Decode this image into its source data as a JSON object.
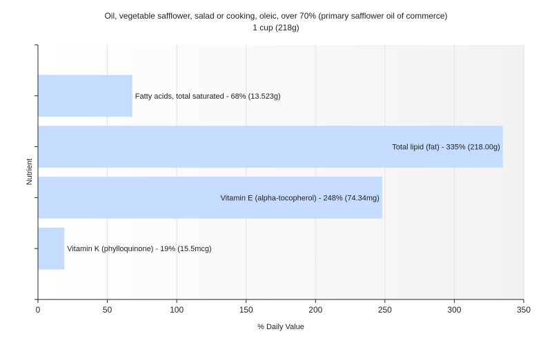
{
  "chart_data": {
    "type": "bar",
    "orientation": "horizontal",
    "title": "Oil, vegetable safflower, salad or cooking, oleic, over 70% (primary safflower oil of commerce)",
    "subtitle": "1 cup (218g)",
    "xlabel": "% Daily Value",
    "ylabel": "Nutrient",
    "xlim": [
      0,
      350
    ],
    "xticks": [
      0,
      50,
      100,
      150,
      200,
      250,
      300,
      350
    ],
    "grid": true,
    "bar_color": "#c5dcff",
    "categories": [
      "Fatty acids, total saturated",
      "Total lipid (fat)",
      "Vitamin E (alpha-tocopherol)",
      "Vitamin K (phylloquinone)"
    ],
    "values": [
      68,
      335,
      248,
      19
    ],
    "labels": [
      "Fatty acids, total saturated - 68% (13.523g)",
      "Total lipid (fat) - 335% (218.00g)",
      "Vitamin E (alpha-tocopherol) - 248% (74.34mg)",
      "Vitamin K (phylloquinone) - 19% (15.5mcg)"
    ]
  }
}
